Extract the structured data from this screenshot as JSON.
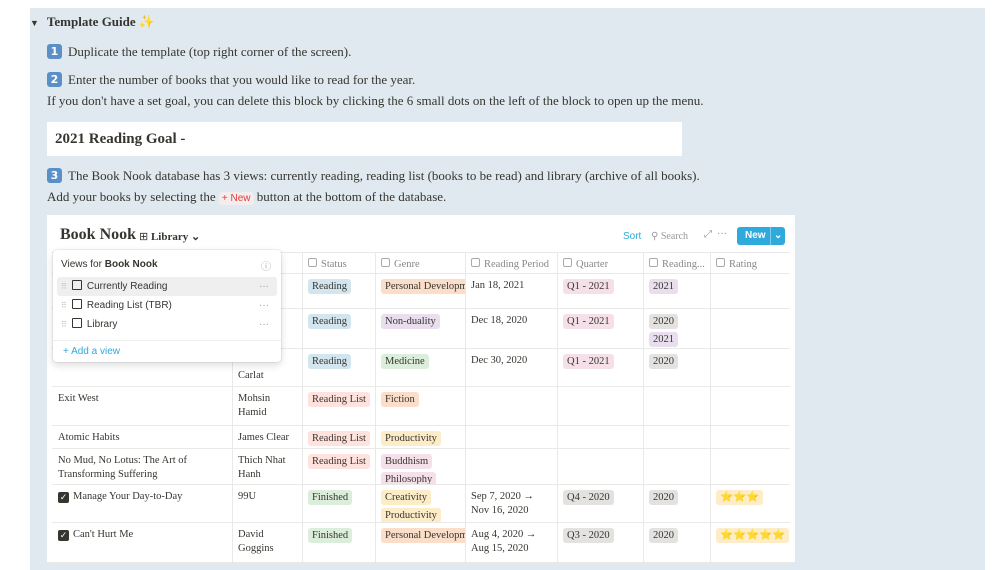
{
  "guide": {
    "title": "Template Guide ✨",
    "steps": [
      {
        "badge": "1",
        "lines": [
          "Duplicate the template (top right corner of the screen)."
        ]
      },
      {
        "badge": "2",
        "lines": [
          "Enter the number of books that you would like to read for the year."
        ],
        "note": "If you don't have a set goal, you can delete this block by clicking the 6 small dots on the left of the block to open up the menu."
      },
      {
        "badge": "3",
        "lines": [
          "The Book Nook database has 3 views: currently reading, reading list (books to be read) and library (archive of all books)."
        ],
        "note_parts": [
          "Add your books by selecting the",
          "+ New",
          "button at the bottom of the database."
        ]
      }
    ],
    "goal": "2021 Reading Goal -"
  },
  "database": {
    "title": "Book Nook",
    "view": "Library",
    "toolbar": {
      "sort": "Sort",
      "search": "Search",
      "new": "New"
    },
    "columns": [
      null,
      null,
      "Status",
      "Genre",
      "Reading Period",
      "Quarter",
      "Reading...",
      "Rating"
    ],
    "rows": [
      {
        "name": null,
        "checked": false,
        "author": null,
        "status": [
          {
            "text": "Reading",
            "color": "#d3e5ef"
          }
        ],
        "genre": [
          {
            "text": "Personal Developm",
            "color": "#fadec9"
          }
        ],
        "period": "Jan 18, 2021",
        "quarter": [
          {
            "text": "Q1 - 2021",
            "color": "#f5e0e9"
          }
        ],
        "reading": [
          {
            "text": "2021",
            "color": "#e8deee"
          }
        ],
        "rating": []
      },
      {
        "name": null,
        "checked": false,
        "author": null,
        "status": [
          {
            "text": "Reading",
            "color": "#d3e5ef"
          }
        ],
        "genre": [
          {
            "text": "Non-duality",
            "color": "#e8deee"
          }
        ],
        "period": "Dec 18, 2020",
        "quarter": [
          {
            "text": "Q1 - 2021",
            "color": "#f5e0e9"
          }
        ],
        "reading": [
          {
            "text": "2020",
            "color": "#e3e2e0"
          },
          {
            "text": "2021",
            "color": "#e8deee"
          }
        ],
        "rating": []
      },
      {
        "name": null,
        "checked": false,
        "author": "Carlat",
        "status": [
          {
            "text": "Reading",
            "color": "#d3e5ef"
          }
        ],
        "genre": [
          {
            "text": "Medicine",
            "color": "#dbeddb"
          }
        ],
        "period": "Dec 30, 2020",
        "quarter": [
          {
            "text": "Q1 - 2021",
            "color": "#f5e0e9"
          }
        ],
        "reading": [
          {
            "text": "2020",
            "color": "#e3e2e0"
          }
        ],
        "rating": []
      },
      {
        "name": "Exit West",
        "checked": false,
        "author": "Mohsin Hamid",
        "status": [
          {
            "text": "Reading List",
            "color": "#ffe2dd"
          }
        ],
        "genre": [
          {
            "text": "Fiction",
            "color": "#fadec9"
          }
        ],
        "period": null,
        "quarter": [],
        "reading": [],
        "rating": []
      },
      {
        "name": "Atomic Habits",
        "checked": false,
        "author": "James Clear",
        "status": [
          {
            "text": "Reading List",
            "color": "#ffe2dd"
          }
        ],
        "genre": [
          {
            "text": "Productivity",
            "color": "#fdecc8"
          }
        ],
        "period": null,
        "quarter": [],
        "reading": [],
        "rating": []
      },
      {
        "name": "No Mud, No Lotus: The Art of Transforming Suffering",
        "checked": false,
        "author": "Thich Nhat Hanh",
        "status": [
          {
            "text": "Reading List",
            "color": "#ffe2dd"
          }
        ],
        "genre": [
          {
            "text": "Buddhism",
            "color": "#f5e0e9"
          },
          {
            "text": "Philosophy",
            "color": "#f5e0e9"
          }
        ],
        "period": null,
        "quarter": [],
        "reading": [],
        "rating": []
      },
      {
        "name": "Manage Your Day-to-Day",
        "checked": true,
        "author": "99U",
        "status": [
          {
            "text": "Finished",
            "color": "#dbeddb"
          }
        ],
        "genre": [
          {
            "text": "Creativity",
            "color": "#fdecc8"
          },
          {
            "text": "Productivity",
            "color": "#fdecc8"
          }
        ],
        "period": "Sep 7, 2020 → Nov 16, 2020",
        "quarter": [
          {
            "text": "Q4 - 2020",
            "color": "#e3e2e0"
          }
        ],
        "reading": [
          {
            "text": "2020",
            "color": "#e3e2e0"
          }
        ],
        "rating": [
          {
            "text": "⭐⭐⭐",
            "color": "#fdecc8"
          }
        ]
      },
      {
        "name": "Can't Hurt Me",
        "checked": true,
        "author": "David Goggins",
        "status": [
          {
            "text": "Finished",
            "color": "#dbeddb"
          }
        ],
        "genre": [
          {
            "text": "Personal Developm",
            "color": "#fadec9"
          }
        ],
        "period": "Aug 4, 2020 → Aug 15, 2020",
        "quarter": [
          {
            "text": "Q3 - 2020",
            "color": "#e3e2e0"
          }
        ],
        "reading": [
          {
            "text": "2020",
            "color": "#e3e2e0"
          }
        ],
        "rating": [
          {
            "text": "⭐⭐⭐⭐⭐",
            "color": "#fdecc8"
          }
        ]
      }
    ],
    "views_menu": {
      "title": "Views for",
      "db": "Book Nook",
      "items": [
        "Currently Reading",
        "Reading List (TBR)",
        "Library"
      ],
      "add": "+ Add a view"
    }
  }
}
